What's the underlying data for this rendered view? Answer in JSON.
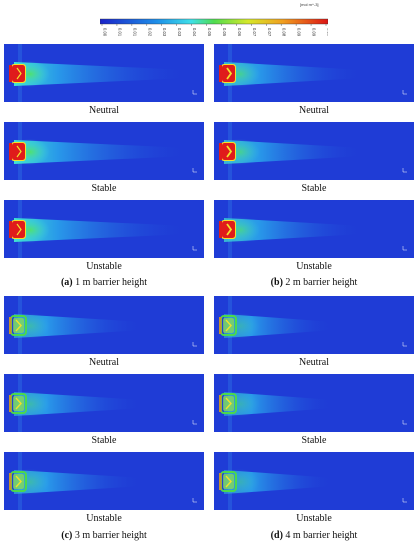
{
  "colorbar": {
    "unit": "[mol m^-3]",
    "ticks": [
      "0.00",
      "0.01",
      "0.01",
      "0.02",
      "0.03",
      "0.03",
      "0.04",
      "0.05",
      "0.05",
      "0.06",
      "0.07",
      "0.07",
      "0.08",
      "0.09",
      "0.09",
      "0.10"
    ]
  },
  "colors": {
    "low": "#1f3cd6",
    "mid": "#37d0f0",
    "green": "#4bd94b",
    "yellow": "#f2e12b",
    "high": "#e01b1b"
  },
  "groups": [
    {
      "id": "a",
      "label": "(a)",
      "text": " 1 m barrier height",
      "panels": [
        {
          "caption": "Neutral"
        },
        {
          "caption": "Stable"
        },
        {
          "caption": "Unstable"
        }
      ]
    },
    {
      "id": "b",
      "label": "(b)",
      "text": " 2 m barrier height",
      "panels": [
        {
          "caption": "Neutral"
        },
        {
          "caption": "Stable"
        },
        {
          "caption": "Unstable"
        }
      ]
    },
    {
      "id": "c",
      "label": "(c)",
      "text": " 3 m barrier height",
      "panels": [
        {
          "caption": "Neutral"
        },
        {
          "caption": "Stable"
        },
        {
          "caption": "Unstable"
        }
      ]
    },
    {
      "id": "d",
      "label": "(d)",
      "text": " 4 m barrier height",
      "panels": [
        {
          "caption": "Neutral"
        },
        {
          "caption": "Stable"
        },
        {
          "caption": "Unstable"
        }
      ]
    }
  ]
}
